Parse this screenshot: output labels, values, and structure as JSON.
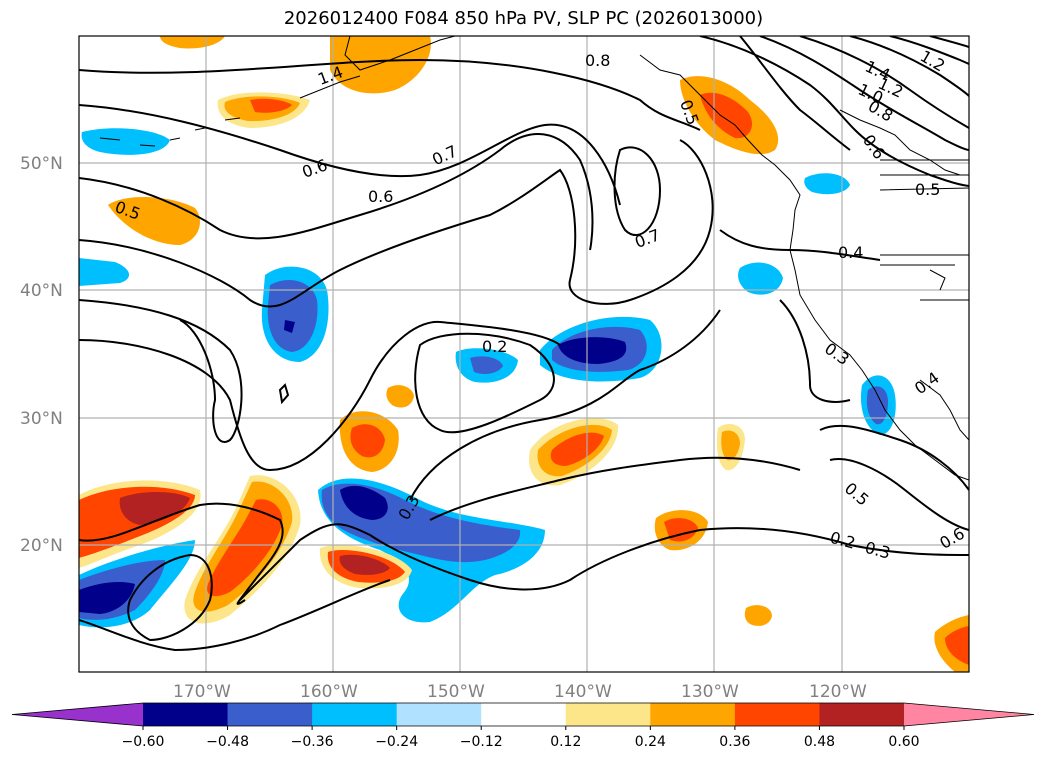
{
  "title": "2026012400 F084 850 hPa PV, SLP PC (2026013000)",
  "lat_labels": [
    "50°N",
    "40°N",
    "30°N",
    "20°N"
  ],
  "lon_labels": [
    "170°W",
    "160°W",
    "150°W",
    "140°W",
    "130°W",
    "120°W"
  ],
  "colorbar": {
    "labels": [
      "-0.60",
      "-0.48",
      "-0.36",
      "-0.24",
      "-0.12",
      "0.12",
      "0.24",
      "0.36",
      "0.48",
      "0.60"
    ],
    "colors": [
      "#9932cc",
      "#00008b",
      "#3a5fcd",
      "#00bfff",
      "#b0e2ff",
      "#ffffff",
      "#fde68a",
      "#ffa500",
      "#ff4500",
      "#b22222",
      "#ff85a2"
    ]
  },
  "contour_labels": [
    "0.8",
    "0.7",
    "0.6",
    "0.6",
    "0.5",
    "0.7",
    "0.2",
    "0.3",
    "0.4",
    "0.3",
    "0.4",
    "0.5",
    "0.5",
    "0.6",
    "0.2",
    "0.3",
    "1.4",
    "1.2",
    "1.0",
    "0.8",
    "0.6",
    "1.2",
    "1.4",
    "0.5"
  ]
}
